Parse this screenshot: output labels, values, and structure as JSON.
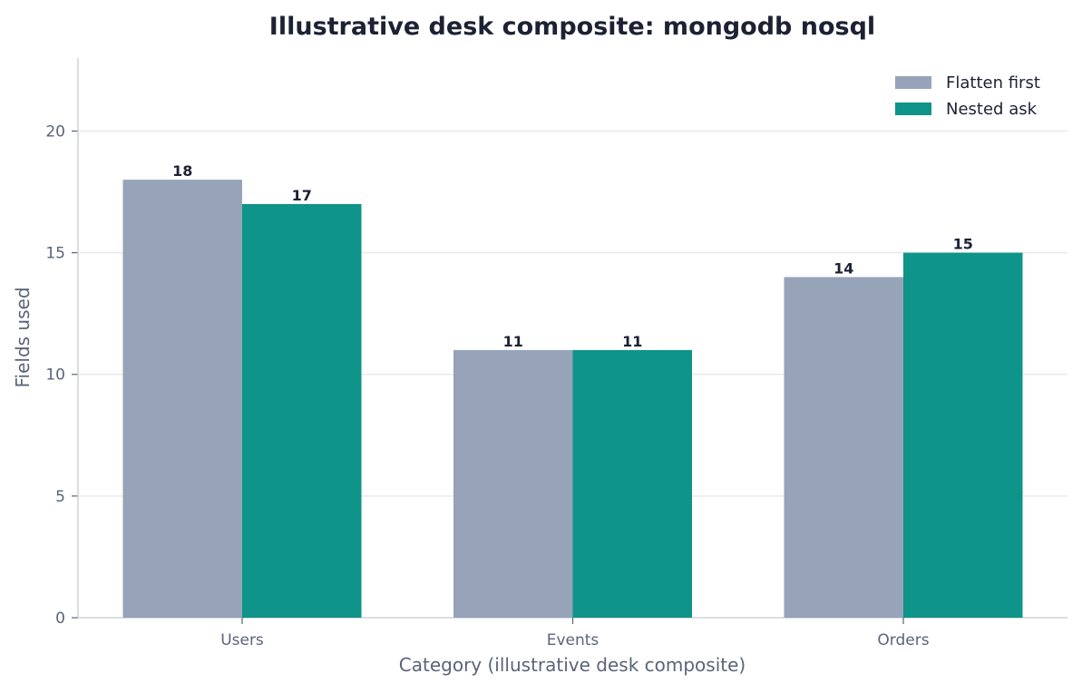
{
  "chart_data": {
    "type": "bar",
    "title": "Illustrative desk composite: mongodb nosql",
    "xlabel": "Category (illustrative desk composite)",
    "ylabel": "Fields used",
    "categories": [
      "Users",
      "Events",
      "Orders"
    ],
    "series": [
      {
        "name": "Flatten first",
        "values": [
          18,
          11,
          14
        ],
        "color": "#96a3b9"
      },
      {
        "name": "Nested ask",
        "values": [
          17,
          11,
          15
        ],
        "color": "#0e9488"
      }
    ],
    "ylim": [
      0,
      23
    ],
    "yticks": [
      0,
      5,
      10,
      15,
      20
    ],
    "grid": "horizontal",
    "legend_position": "top-right",
    "colors": {
      "text": "#1c2233",
      "muted_text": "#5a6478",
      "axis": "#d0d4dc",
      "grid": "#e8eaee"
    }
  }
}
